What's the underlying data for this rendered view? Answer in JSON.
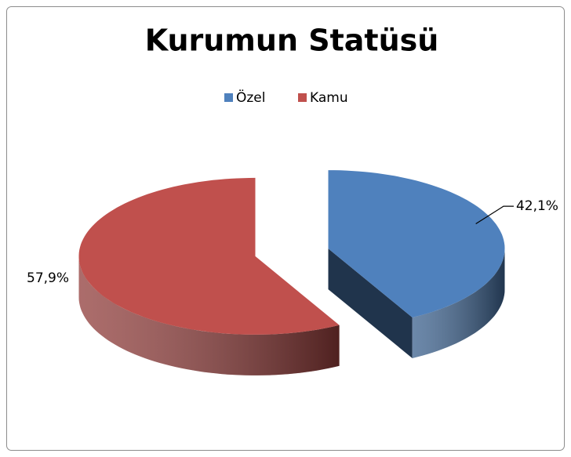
{
  "chart_data": {
    "type": "pie",
    "title": "Kurumun Statüsü",
    "categories": [
      "Özel",
      "Kamu"
    ],
    "values": [
      42.1,
      57.9
    ],
    "value_labels": [
      "42,1%",
      "57,9%"
    ],
    "colors": [
      "#4f81bd",
      "#c0504d"
    ],
    "legend": "top"
  }
}
